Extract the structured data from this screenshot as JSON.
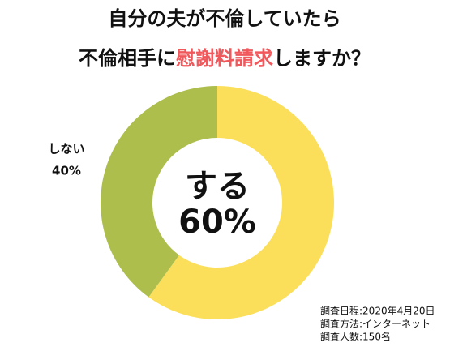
{
  "chart_data": {
    "type": "donut",
    "title_line1": "自分の夫が不倫していたら",
    "title_line2": [
      "不倫相手に",
      "慰謝料請求",
      "しますか？"
    ],
    "title_highlight_color": "#f0585c",
    "categories": [
      "する",
      "しない"
    ],
    "values": [
      60,
      40
    ],
    "value_labels": [
      "60%",
      "40%"
    ],
    "colors": [
      "#fbdf5a",
      "#adbe4d"
    ],
    "notes": [
      "調査日程:2020年4月20日",
      "調査方法:インターネット",
      "調査人数:150名"
    ]
  }
}
